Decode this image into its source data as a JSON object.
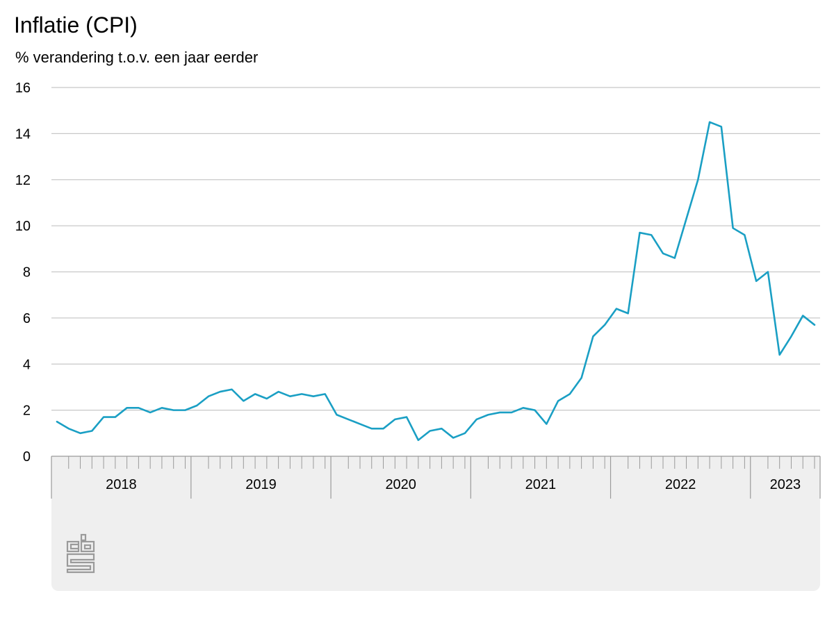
{
  "colors": {
    "line": "#1a9fc4",
    "gridline": "#c8c8c8",
    "axis_panel": "#efefef",
    "logo": "#9a9a9a"
  },
  "logo_icon": "cbs-logo",
  "chart_data": {
    "type": "line",
    "title": "Inflatie (CPI)",
    "subtitle": "% verandering t.o.v. een jaar eerder",
    "xlabel": "",
    "ylabel": "",
    "ylim": [
      0,
      16
    ],
    "yticks": [
      0,
      2,
      4,
      6,
      8,
      10,
      12,
      14,
      16
    ],
    "grid": true,
    "x_start": "2018-01",
    "x_end": "2023-06",
    "year_labels": [
      "2018",
      "2019",
      "2020",
      "2021",
      "2022",
      "2023"
    ],
    "series": [
      {
        "x": [
          "2018-01",
          "2018-02",
          "2018-03",
          "2018-04",
          "2018-05",
          "2018-06",
          "2018-07",
          "2018-08",
          "2018-09",
          "2018-10",
          "2018-11",
          "2018-12",
          "2019-01",
          "2019-02",
          "2019-03",
          "2019-04",
          "2019-05",
          "2019-06",
          "2019-07",
          "2019-08",
          "2019-09",
          "2019-10",
          "2019-11",
          "2019-12",
          "2020-01",
          "2020-02",
          "2020-03",
          "2020-04",
          "2020-05",
          "2020-06",
          "2020-07",
          "2020-08",
          "2020-09",
          "2020-10",
          "2020-11",
          "2020-12",
          "2021-01",
          "2021-02",
          "2021-03",
          "2021-04",
          "2021-05",
          "2021-06",
          "2021-07",
          "2021-08",
          "2021-09",
          "2021-10",
          "2021-11",
          "2021-12",
          "2022-01",
          "2022-02",
          "2022-03",
          "2022-04",
          "2022-05",
          "2022-06",
          "2022-07",
          "2022-08",
          "2022-09",
          "2022-10",
          "2022-11",
          "2022-12",
          "2023-01",
          "2023-02",
          "2023-03",
          "2023-04",
          "2023-05",
          "2023-06"
        ],
        "values": [
          1.5,
          1.2,
          1.0,
          1.1,
          1.7,
          1.7,
          2.1,
          2.1,
          1.9,
          2.1,
          2.0,
          2.0,
          2.2,
          2.6,
          2.8,
          2.9,
          2.4,
          2.7,
          2.5,
          2.8,
          2.6,
          2.7,
          2.6,
          2.7,
          1.8,
          1.6,
          1.4,
          1.2,
          1.2,
          1.6,
          1.7,
          0.7,
          1.1,
          1.2,
          0.8,
          1.0,
          1.6,
          1.8,
          1.9,
          1.9,
          2.1,
          2.0,
          1.4,
          2.4,
          2.7,
          3.4,
          5.2,
          5.7,
          6.4,
          6.2,
          9.7,
          9.6,
          8.8,
          8.6,
          10.3,
          12.0,
          14.5,
          14.3,
          9.9,
          9.6,
          7.6,
          8.0,
          4.4,
          5.2,
          6.1,
          5.7
        ]
      }
    ]
  }
}
